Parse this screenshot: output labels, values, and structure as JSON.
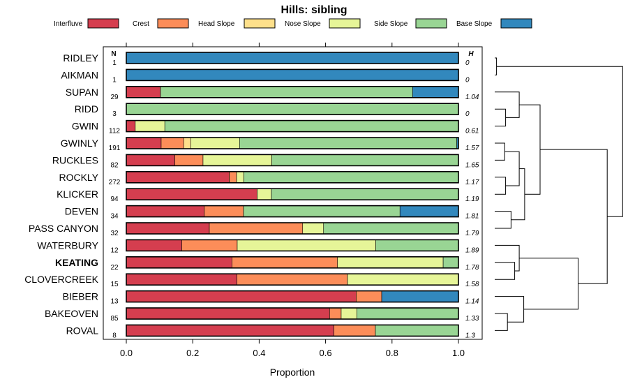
{
  "chart_data": {
    "type": "stacked-bar-horizontal",
    "title": "Hills: sibling",
    "xlabel": "Proportion",
    "ylabel": "",
    "xlim": [
      0,
      1
    ],
    "x_ticks": [
      "0.0",
      "0.2",
      "0.4",
      "0.6",
      "0.8",
      "1.0"
    ],
    "n_header": "N",
    "h_header": "H",
    "highlight": "KEATING",
    "legend": [
      {
        "name": "Interfluve",
        "color": "#d53e4f"
      },
      {
        "name": "Crest",
        "color": "#fc8d59"
      },
      {
        "name": "Head Slope",
        "color": "#fee08b"
      },
      {
        "name": "Nose Slope",
        "color": "#e6f598"
      },
      {
        "name": "Side Slope",
        "color": "#99d594"
      },
      {
        "name": "Base Slope",
        "color": "#3288bd"
      }
    ],
    "rows": [
      {
        "label": "RIDLEY",
        "n": "1",
        "h": "0",
        "values": [
          0,
          0,
          0,
          0,
          0,
          1.0
        ]
      },
      {
        "label": "AIKMAN",
        "n": "1",
        "h": "0",
        "values": [
          0,
          0,
          0,
          0,
          0,
          1.0
        ]
      },
      {
        "label": "SUPAN",
        "n": "29",
        "h": "1.04",
        "values": [
          0.103,
          0,
          0,
          0,
          0.759,
          0.138
        ]
      },
      {
        "label": "RIDD",
        "n": "3",
        "h": "0",
        "values": [
          0,
          0,
          0,
          0,
          1.0,
          0
        ]
      },
      {
        "label": "GWIN",
        "n": "112",
        "h": "0.61",
        "values": [
          0.027,
          0,
          0,
          0.089,
          0.884,
          0
        ]
      },
      {
        "label": "GWINLY",
        "n": "191",
        "h": "1.57",
        "values": [
          0.105,
          0.068,
          0.021,
          0.147,
          0.654,
          0.005
        ]
      },
      {
        "label": "RUCKLES",
        "n": "82",
        "h": "1.65",
        "values": [
          0.146,
          0.085,
          0,
          0.207,
          0.562,
          0
        ]
      },
      {
        "label": "ROCKLY",
        "n": "272",
        "h": "1.17",
        "values": [
          0.31,
          0.022,
          0,
          0.022,
          0.646,
          0
        ]
      },
      {
        "label": "KLICKER",
        "n": "94",
        "h": "1.19",
        "values": [
          0.394,
          0,
          0,
          0.043,
          0.563,
          0
        ]
      },
      {
        "label": "DEVEN",
        "n": "34",
        "h": "1.81",
        "values": [
          0.235,
          0.118,
          0,
          0,
          0.471,
          0.176
        ]
      },
      {
        "label": "PASS CANYON",
        "n": "32",
        "h": "1.79",
        "values": [
          0.25,
          0.281,
          0,
          0.063,
          0.406,
          0
        ]
      },
      {
        "label": "WATERBURY",
        "n": "12",
        "h": "1.89",
        "values": [
          0.167,
          0.167,
          0,
          0.417,
          0.249,
          0
        ]
      },
      {
        "label": "KEATING",
        "n": "22",
        "h": "1.78",
        "values": [
          0.318,
          0.318,
          0,
          0.318,
          0.046,
          0
        ]
      },
      {
        "label": "CLOVERCREEK",
        "n": "15",
        "h": "1.58",
        "values": [
          0.333,
          0.333,
          0,
          0.334,
          0,
          0
        ]
      },
      {
        "label": "BIEBER",
        "n": "13",
        "h": "1.14",
        "values": [
          0.692,
          0.077,
          0,
          0,
          0,
          0.231
        ]
      },
      {
        "label": "BAKEOVEN",
        "n": "85",
        "h": "1.33",
        "values": [
          0.612,
          0.035,
          0,
          0.047,
          0.306,
          0
        ]
      },
      {
        "label": "ROVAL",
        "n": "8",
        "h": "1.3",
        "values": [
          0.625,
          0.125,
          0,
          0,
          0.25,
          0
        ]
      }
    ],
    "dendrogram": {
      "leaf_order": [
        "RIDLEY",
        "AIKMAN",
        "SUPAN",
        "RIDD",
        "GWIN",
        "GWINLY",
        "RUCKLES",
        "ROCKLY",
        "KLICKER",
        "DEVEN",
        "PASS CANYON",
        "WATERBURY",
        "KEATING",
        "CLOVERCREEK",
        "BIEBER",
        "BAKEOVEN",
        "ROVAL"
      ],
      "merges": [
        {
          "left": "RIDLEY",
          "right": "AIKMAN",
          "height": 0.02
        },
        {
          "left": "RIDD",
          "right": "GWIN",
          "height": 0.12
        },
        {
          "left": "SUPAN",
          "right": "RIDD+GWIN",
          "height": 0.27
        },
        {
          "left": "GWINLY",
          "right": "RUCKLES",
          "height": 0.11
        },
        {
          "left": "ROCKLY",
          "right": "KLICKER",
          "height": 0.12
        },
        {
          "left": "GWINLY+RUCKLES",
          "right": "ROCKLY+KLICKER",
          "height": 0.27
        },
        {
          "left": "DEVEN",
          "right": "PASS CANYON",
          "height": 0.18
        },
        {
          "left": "GWINLY..KLICKER",
          "right": "DEVEN+PASS CANYON",
          "height": 0.33
        },
        {
          "left": "SUPAN..GWIN",
          "right": "GWINLY..PASS CANYON",
          "height": 0.5
        },
        {
          "left": "KEATING",
          "right": "CLOVERCREEK",
          "height": 0.22
        },
        {
          "left": "WATERBURY",
          "right": "KEATING+CLOVERCREEK",
          "height": 0.27
        },
        {
          "left": "BAKEOVEN",
          "right": "ROVAL",
          "height": 0.14
        },
        {
          "left": "BIEBER",
          "right": "BAKEOVEN+ROVAL",
          "height": 0.32
        },
        {
          "left": "WATERBURY..CLOVERCREEK",
          "right": "BIEBER..ROVAL",
          "height": 0.92
        },
        {
          "left": "SUPAN..PASS CANYON",
          "right": "WATERBURY..ROVAL",
          "height": 1.24
        },
        {
          "left": "RIDLEY+AIKMAN",
          "right": "SUPAN..ROVAL",
          "height": 1.41
        }
      ]
    }
  }
}
